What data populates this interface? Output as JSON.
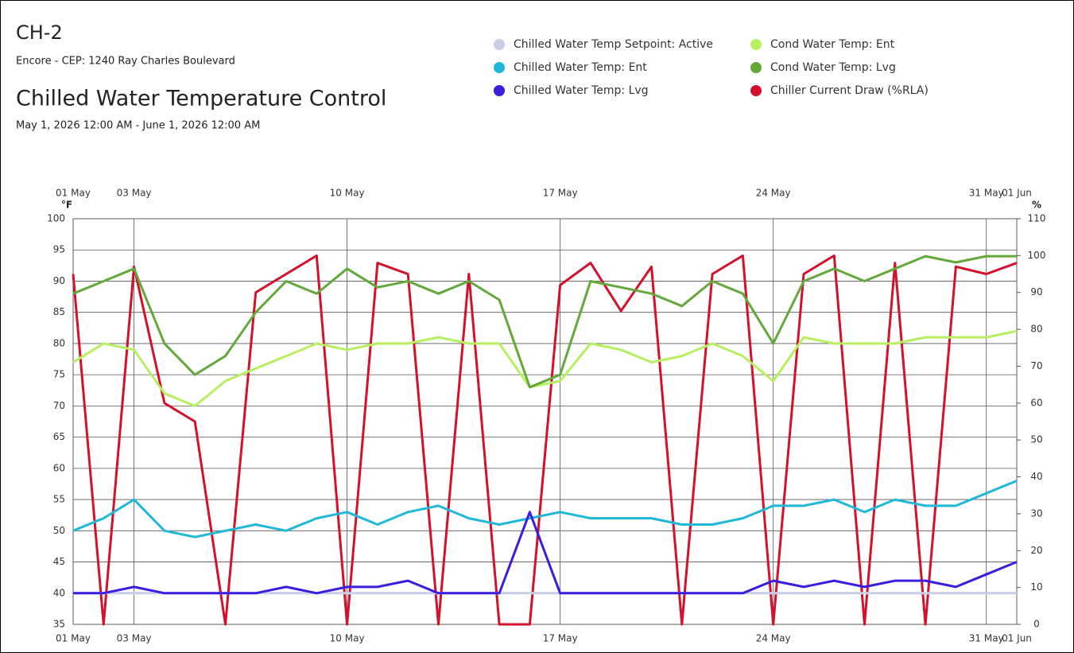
{
  "header": {
    "title": "CH-2",
    "location": "Encore - CEP: 1240 Ray Charles Boulevard"
  },
  "chart_data": {
    "type": "line",
    "title": "Chilled Water Temperature Control",
    "subtitle": "May 1, 2026 12:00 AM - June 1, 2026 12:00 AM",
    "y_label": "°F",
    "y2_label": "%",
    "x": [
      "01 May",
      "02 May",
      "03 May",
      "04 May",
      "05 May",
      "06 May",
      "07 May",
      "08 May",
      "09 May",
      "10 May",
      "11 May",
      "12 May",
      "13 May",
      "14 May",
      "15 May",
      "16 May",
      "17 May",
      "18 May",
      "19 May",
      "20 May",
      "21 May",
      "22 May",
      "23 May",
      "24 May",
      "25 May",
      "26 May",
      "27 May",
      "28 May",
      "29 May",
      "30 May",
      "31 May",
      "01 Jun"
    ],
    "xticks": [
      "01 May",
      "03 May",
      "10 May",
      "17 May",
      "24 May",
      "31 May",
      "01 Jun"
    ],
    "ylim": [
      35,
      100
    ],
    "yticks": [
      35,
      40,
      45,
      50,
      55,
      60,
      65,
      70,
      75,
      80,
      85,
      90,
      95,
      100
    ],
    "y2lim": [
      0,
      110
    ],
    "y2ticks": [
      0,
      10,
      20,
      30,
      40,
      50,
      60,
      70,
      80,
      90,
      100,
      110
    ],
    "grid": true,
    "series": [
      {
        "name": "Chiller Current Draw (%RLA)",
        "color": "#d4102a",
        "axis": "y2",
        "values": [
          95,
          0,
          97,
          60,
          55,
          0,
          90,
          95,
          100,
          0,
          98,
          95,
          0,
          95,
          0,
          0,
          92,
          98,
          85,
          97,
          0,
          95,
          100,
          0,
          95,
          100,
          0,
          98,
          0,
          97,
          95,
          98
        ]
      },
      {
        "name": "Chilled Water Temp Setpoint: Active",
        "color": "#c9cde6",
        "values": [
          40,
          40,
          40,
          40,
          40,
          40,
          40,
          40,
          40,
          40,
          40,
          40,
          40,
          40,
          40,
          40,
          40,
          40,
          40,
          40,
          40,
          40,
          40,
          40,
          40,
          40,
          40,
          40,
          40,
          40,
          40,
          40
        ]
      },
      {
        "name": "Chilled Water Temp: Ent",
        "color": "#20b8d8",
        "values": [
          50,
          52,
          55,
          50,
          49,
          50,
          51,
          50,
          52,
          53,
          51,
          53,
          54,
          52,
          51,
          52,
          53,
          52,
          52,
          52,
          51,
          51,
          52,
          54,
          54,
          55,
          53,
          55,
          54,
          54,
          56,
          58
        ]
      },
      {
        "name": "Chilled Water Temp: Lvg",
        "color": "#3a1ee0",
        "values": [
          40,
          40,
          41,
          40,
          40,
          40,
          40,
          41,
          40,
          41,
          41,
          42,
          40,
          40,
          40,
          53,
          40,
          40,
          40,
          40,
          40,
          40,
          40,
          42,
          41,
          42,
          41,
          42,
          42,
          41,
          43,
          45
        ]
      },
      {
        "name": "Cond Water Temp: Ent",
        "color": "#b6f060",
        "values": [
          77,
          80,
          79,
          72,
          70,
          74,
          76,
          78,
          80,
          79,
          80,
          80,
          81,
          80,
          80,
          73,
          74,
          80,
          79,
          77,
          78,
          80,
          78,
          74,
          81,
          80,
          80,
          80,
          81,
          81,
          81,
          82
        ]
      },
      {
        "name": "Cond Water Temp: Lvg",
        "color": "#62a83a",
        "values": [
          88,
          90,
          92,
          80,
          75,
          78,
          85,
          90,
          88,
          92,
          89,
          90,
          88,
          90,
          87,
          73,
          75,
          90,
          89,
          88,
          86,
          90,
          88,
          80,
          90,
          92,
          90,
          92,
          94,
          93,
          94,
          94
        ]
      }
    ]
  }
}
